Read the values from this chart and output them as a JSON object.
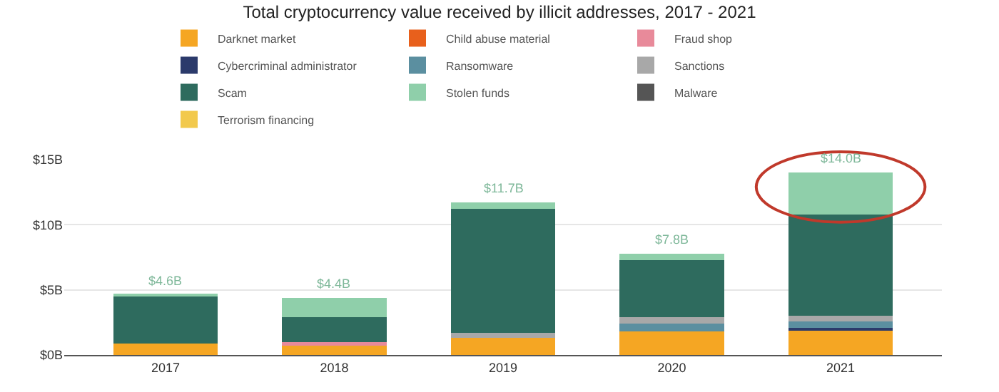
{
  "chart_data": {
    "type": "bar",
    "title": "Total cryptocurrency value received by illicit addresses, 2017 - 2021",
    "categories": [
      "2017",
      "2018",
      "2019",
      "2020",
      "2021"
    ],
    "stacked": true,
    "series": [
      {
        "name": "Darknet market",
        "color": "#f5a623",
        "values": [
          0.9,
          0.7,
          1.3,
          1.8,
          1.9
        ]
      },
      {
        "name": "Child abuse material",
        "color": "#e8601c",
        "values": [
          null,
          null,
          null,
          null,
          null
        ]
      },
      {
        "name": "Fraud shop",
        "color": "#e88a9a",
        "values": [
          null,
          0.3,
          null,
          null,
          null
        ]
      },
      {
        "name": "Cybercriminal administrator",
        "color": "#2b3a6b",
        "values": [
          null,
          null,
          null,
          null,
          0.2
        ]
      },
      {
        "name": "Ransomware",
        "color": "#5b8fa0",
        "values": [
          null,
          null,
          null,
          0.6,
          0.5
        ]
      },
      {
        "name": "Sanctions",
        "color": "#a8a8a8",
        "values": [
          null,
          null,
          0.4,
          0.5,
          0.4
        ]
      },
      {
        "name": "Scam",
        "color": "#2e6b5e",
        "values": [
          3.6,
          1.9,
          9.5,
          4.4,
          7.8
        ]
      },
      {
        "name": "Stolen funds",
        "color": "#8fcfaa",
        "values": [
          0.1,
          1.5,
          0.5,
          0.5,
          3.2
        ]
      },
      {
        "name": "Malware",
        "color": "#555555",
        "values": [
          null,
          null,
          null,
          null,
          null
        ]
      },
      {
        "name": "Terrorism financing",
        "color": "#f2c94c",
        "values": [
          null,
          null,
          null,
          null,
          null
        ]
      }
    ],
    "totals": [
      "$4.6B",
      "$4.4B",
      "$11.7B",
      "$7.8B",
      "$14.0B"
    ],
    "ylim": [
      0,
      15
    ],
    "yticks": [
      {
        "value": 0,
        "label": "$0B"
      },
      {
        "value": 5,
        "label": "$5B"
      },
      {
        "value": 10,
        "label": "$10B"
      },
      {
        "value": 15,
        "label": "$15B"
      }
    ],
    "grid": "y",
    "legend": "top"
  }
}
